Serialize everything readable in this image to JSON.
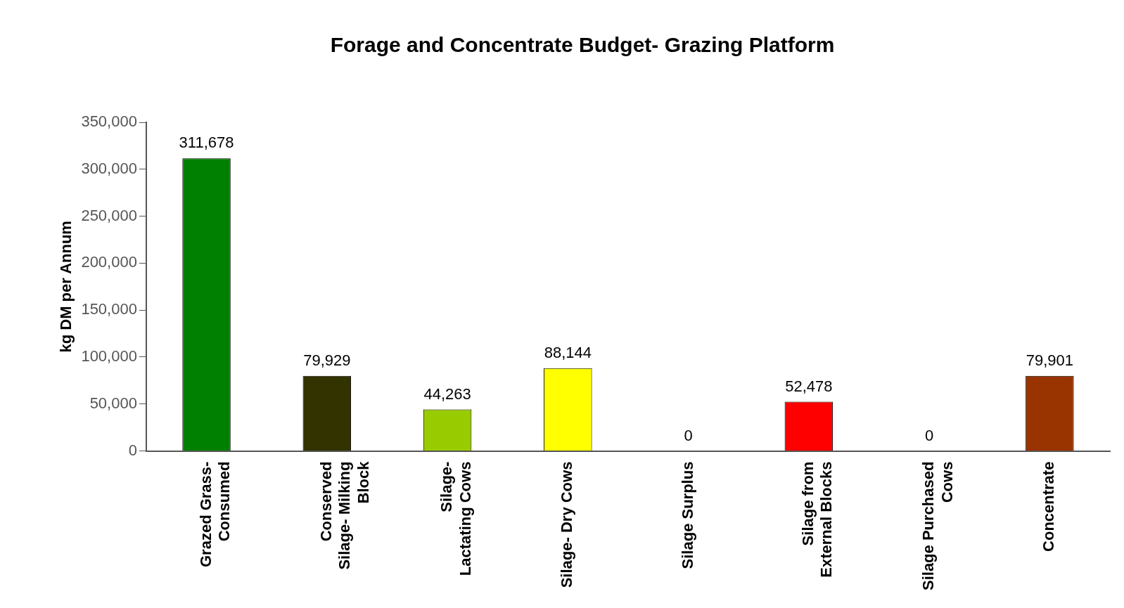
{
  "chart_data": {
    "type": "bar",
    "title": "Forage and Concentrate Budget- Grazing Platform",
    "ylabel": "kg DM per Annum",
    "categories": [
      "Grazed Grass- Consumed",
      "Conserved Silage- Milking Block",
      "Silage- Lactating Cows",
      "Silage- Dry Cows",
      "Silage Surplus",
      "Silage from External Blocks",
      "Silage Purchased Cows",
      "Concentrate"
    ],
    "values": [
      311678,
      79929,
      44263,
      88144,
      0,
      52478,
      0,
      79901
    ],
    "value_labels": [
      "311,678",
      "79,929",
      "44,263",
      "88,144",
      "0",
      "52,478",
      "0",
      "79,901"
    ],
    "colors": [
      "#008000",
      "#333300",
      "#99cc00",
      "#ffff00",
      "#ffffff",
      "#ff0000",
      "#ffffff",
      "#993300"
    ],
    "ylim": [
      0,
      350000
    ],
    "yticks": [
      0,
      {
        "value": 50000,
        "label": "50,000"
      },
      {
        "value": 100000,
        "label": "100,000"
      },
      {
        "value": 150000,
        "label": "150,000"
      },
      {
        "value": 200000,
        "label": "200,000"
      },
      {
        "value": 250000,
        "label": "250,000"
      },
      {
        "value": 300000,
        "label": "300,000"
      },
      {
        "value": 350000,
        "label": "350,000"
      }
    ],
    "grid": false,
    "legend": false
  }
}
